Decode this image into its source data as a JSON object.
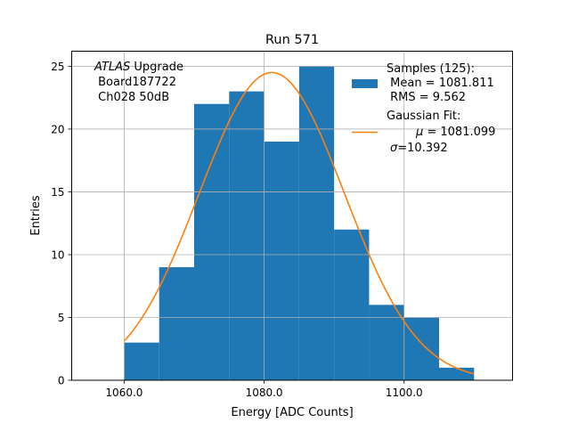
{
  "chart_data": {
    "type": "bar",
    "title": "Run 571",
    "xlabel": "Energy [ADC Counts]",
    "ylabel": "Entries",
    "xlim": [
      1052.5,
      1115.5
    ],
    "ylim": [
      0,
      26.2
    ],
    "grid": true,
    "x_ticks": [
      1060.0,
      1080.0,
      1100.0
    ],
    "x_tick_labels": [
      "1060.0",
      "1080.0",
      "1100.0"
    ],
    "y_ticks": [
      0,
      5,
      10,
      15,
      20,
      25
    ],
    "y_tick_labels": [
      "0",
      "5",
      "10",
      "15",
      "20",
      "25"
    ],
    "histogram": {
      "bin_edges": [
        1060,
        1065,
        1070,
        1075,
        1080,
        1085,
        1090,
        1095,
        1100,
        1105,
        1110
      ],
      "values": [
        3,
        9,
        22,
        23,
        19,
        25,
        12,
        6,
        5,
        1
      ],
      "color": "#1f77b4"
    },
    "fit": {
      "type": "gaussian",
      "mu": 1081.099,
      "sigma": 10.392,
      "peak": 24.5,
      "x_range": [
        1060,
        1110
      ],
      "color": "#ff7f0e"
    },
    "annotation": {
      "italic": "ATLAS",
      "line1_rest": " Upgrade",
      "line2": " Board187722",
      "line3": " Ch028 50dB"
    },
    "legend": {
      "placement": "top-right",
      "samples": {
        "line1": "Samples (125):",
        "line2": " Mean = 1081.811",
        "line3": " RMS = 9.562"
      },
      "fit": {
        "line1": "Gaussian Fit:",
        "mu_symbol": "μ",
        "mu_text": " = 1081.099",
        "sigma_symbol": "σ",
        "sigma_text": "=10.392"
      }
    }
  }
}
